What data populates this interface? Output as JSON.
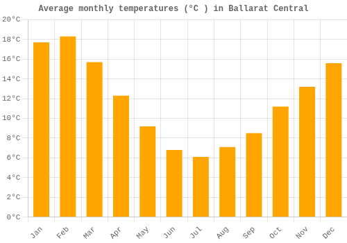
{
  "chart_data": {
    "type": "bar",
    "title": "Average monthly temperatures (°C ) in Ballarat Central",
    "categories": [
      "Jan",
      "Feb",
      "Mar",
      "Apr",
      "May",
      "Jun",
      "Jul",
      "Aug",
      "Sep",
      "Oct",
      "Nov",
      "Dec"
    ],
    "values": [
      17.7,
      18.3,
      15.7,
      12.3,
      9.2,
      6.8,
      6.1,
      7.1,
      8.5,
      11.2,
      13.2,
      15.6
    ],
    "color": "#FFA500",
    "ylim": [
      0,
      20
    ],
    "yticks": [
      {
        "value": 0,
        "label": "0°C"
      },
      {
        "value": 2,
        "label": "2°C"
      },
      {
        "value": 4,
        "label": "4°C"
      },
      {
        "value": 6,
        "label": "6°C"
      },
      {
        "value": 8,
        "label": "8°C"
      },
      {
        "value": 10,
        "label": "10°C"
      },
      {
        "value": 12,
        "label": "12°C"
      },
      {
        "value": 14,
        "label": "14°C"
      },
      {
        "value": 16,
        "label": "16°C"
      },
      {
        "value": 18,
        "label": "18°C"
      },
      {
        "value": 20,
        "label": "20°C"
      }
    ],
    "grid": true
  }
}
